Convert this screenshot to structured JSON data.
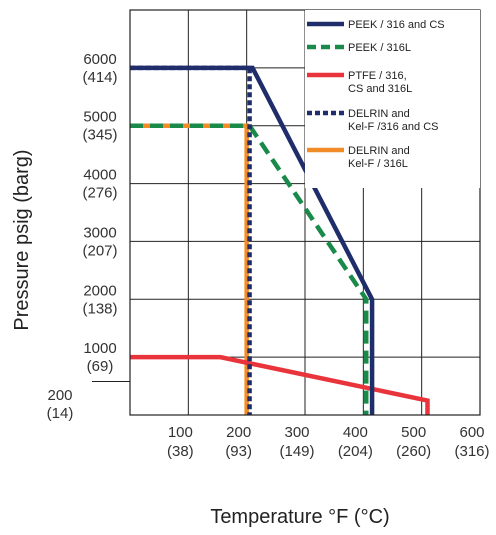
{
  "chart_data": {
    "type": "line",
    "xlabel": "Temperature °F (°C)",
    "ylabel": "Pressure psig (barg)",
    "xlim": [
      0,
      600
    ],
    "ylim": [
      0,
      7000
    ],
    "grid": true,
    "legend_position": "top-right",
    "x_ticks": [
      {
        "value": 100,
        "label": "100",
        "sub": "(38)"
      },
      {
        "value": 200,
        "label": "200",
        "sub": "(93)"
      },
      {
        "value": 300,
        "label": "300",
        "sub": "(149)"
      },
      {
        "value": 400,
        "label": "400",
        "sub": "(204)"
      },
      {
        "value": 500,
        "label": "500",
        "sub": "(260)"
      },
      {
        "value": 600,
        "label": "600",
        "sub": "(316)"
      }
    ],
    "y_ticks": [
      {
        "value": 200,
        "label": "200",
        "sub": "(14)"
      },
      {
        "value": 1000,
        "label": "1000",
        "sub": "(69)"
      },
      {
        "value": 2000,
        "label": "2000",
        "sub": "(138)"
      },
      {
        "value": 3000,
        "label": "3000",
        "sub": "(207)"
      },
      {
        "value": 4000,
        "label": "4000",
        "sub": "(276)"
      },
      {
        "value": 5000,
        "label": "5000",
        "sub": "(345)"
      },
      {
        "value": 6000,
        "label": "6000",
        "sub": "(414)"
      }
    ],
    "series": [
      {
        "name": "PEEK / 316 and CS",
        "color": "#1f2d6b",
        "style": "solid",
        "points": [
          [
            0,
            6000
          ],
          [
            210,
            6000
          ],
          [
            415,
            2000
          ],
          [
            415,
            0
          ]
        ]
      },
      {
        "name": "PEEK / 316L",
        "color": "#1a8a4a",
        "style": "dashed",
        "points": [
          [
            0,
            5000
          ],
          [
            205,
            5000
          ],
          [
            405,
            2000
          ],
          [
            405,
            0
          ]
        ]
      },
      {
        "name": "PTFE / 316, CS and 316L",
        "color": "#e8343a",
        "style": "solid",
        "points": [
          [
            0,
            1000
          ],
          [
            155,
            1000
          ],
          [
            510,
            250
          ],
          [
            510,
            0
          ]
        ]
      },
      {
        "name": "DELRIN and Kel-F /316 and CS",
        "color": "#1f2d6b",
        "style": "dotted",
        "points": [
          [
            0,
            6000
          ],
          [
            205,
            6000
          ],
          [
            205,
            0
          ]
        ]
      },
      {
        "name": "DELRIN and Kel-F / 316L",
        "color": "#f28c28",
        "style": "solid",
        "points": [
          [
            0,
            5000
          ],
          [
            200,
            5000
          ],
          [
            200,
            0
          ]
        ]
      }
    ]
  }
}
